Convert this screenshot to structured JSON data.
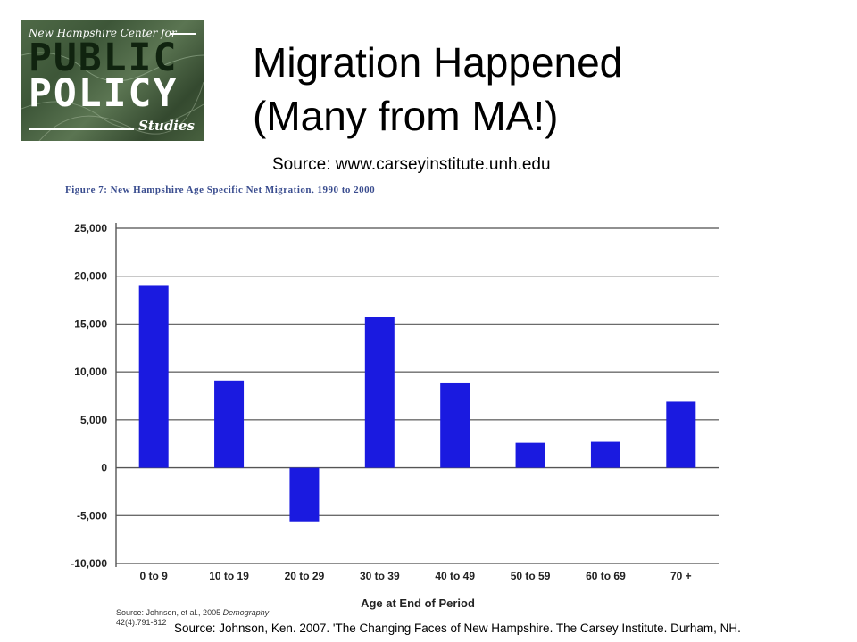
{
  "slide": {
    "title_line1": "Migration Happened",
    "title_line2": "(Many from MA!)",
    "source_top": "Source: www.carseyinstitute.unh.edu",
    "source_bottom": "Source: Johnson, Ken. 2007. 'The Changing Faces of New Hampshire.  The Carsey Institute. Durham, NH."
  },
  "logo": {
    "top_text": "New Hampshire Center for",
    "word1": "PUBLIC",
    "word2": "POLICY",
    "word3": "Studies"
  },
  "figure": {
    "title": "Figure 7:  New Hampshire Age Specific Net Migration, 1990 to 2000",
    "source_line1_prefix": "Source: Johnson, et al., 2005 ",
    "source_line1_journal": "Demography",
    "source_line2": "42(4):791-812"
  },
  "chart_data": {
    "type": "bar",
    "title": "",
    "xlabel": "Age at End of Period",
    "ylabel": "",
    "categories": [
      "0 to 9",
      "10 to 19",
      "20 to 29",
      "30 to 39",
      "40 to 49",
      "50 to 59",
      "60 to 69",
      "70 +"
    ],
    "values": [
      19000,
      9100,
      -5600,
      15700,
      8900,
      2600,
      2700,
      6900
    ],
    "ylim": [
      -10000,
      25000
    ],
    "yticks": [
      25000,
      20000,
      15000,
      10000,
      5000,
      0,
      -5000,
      -10000
    ],
    "ytick_labels": [
      "25,000",
      "20,000",
      "15,000",
      "10,000",
      "5,000",
      "0",
      "-5,000",
      "-10,000"
    ],
    "grid": true,
    "bar_color": "#1a1ae0",
    "legend": "none"
  }
}
